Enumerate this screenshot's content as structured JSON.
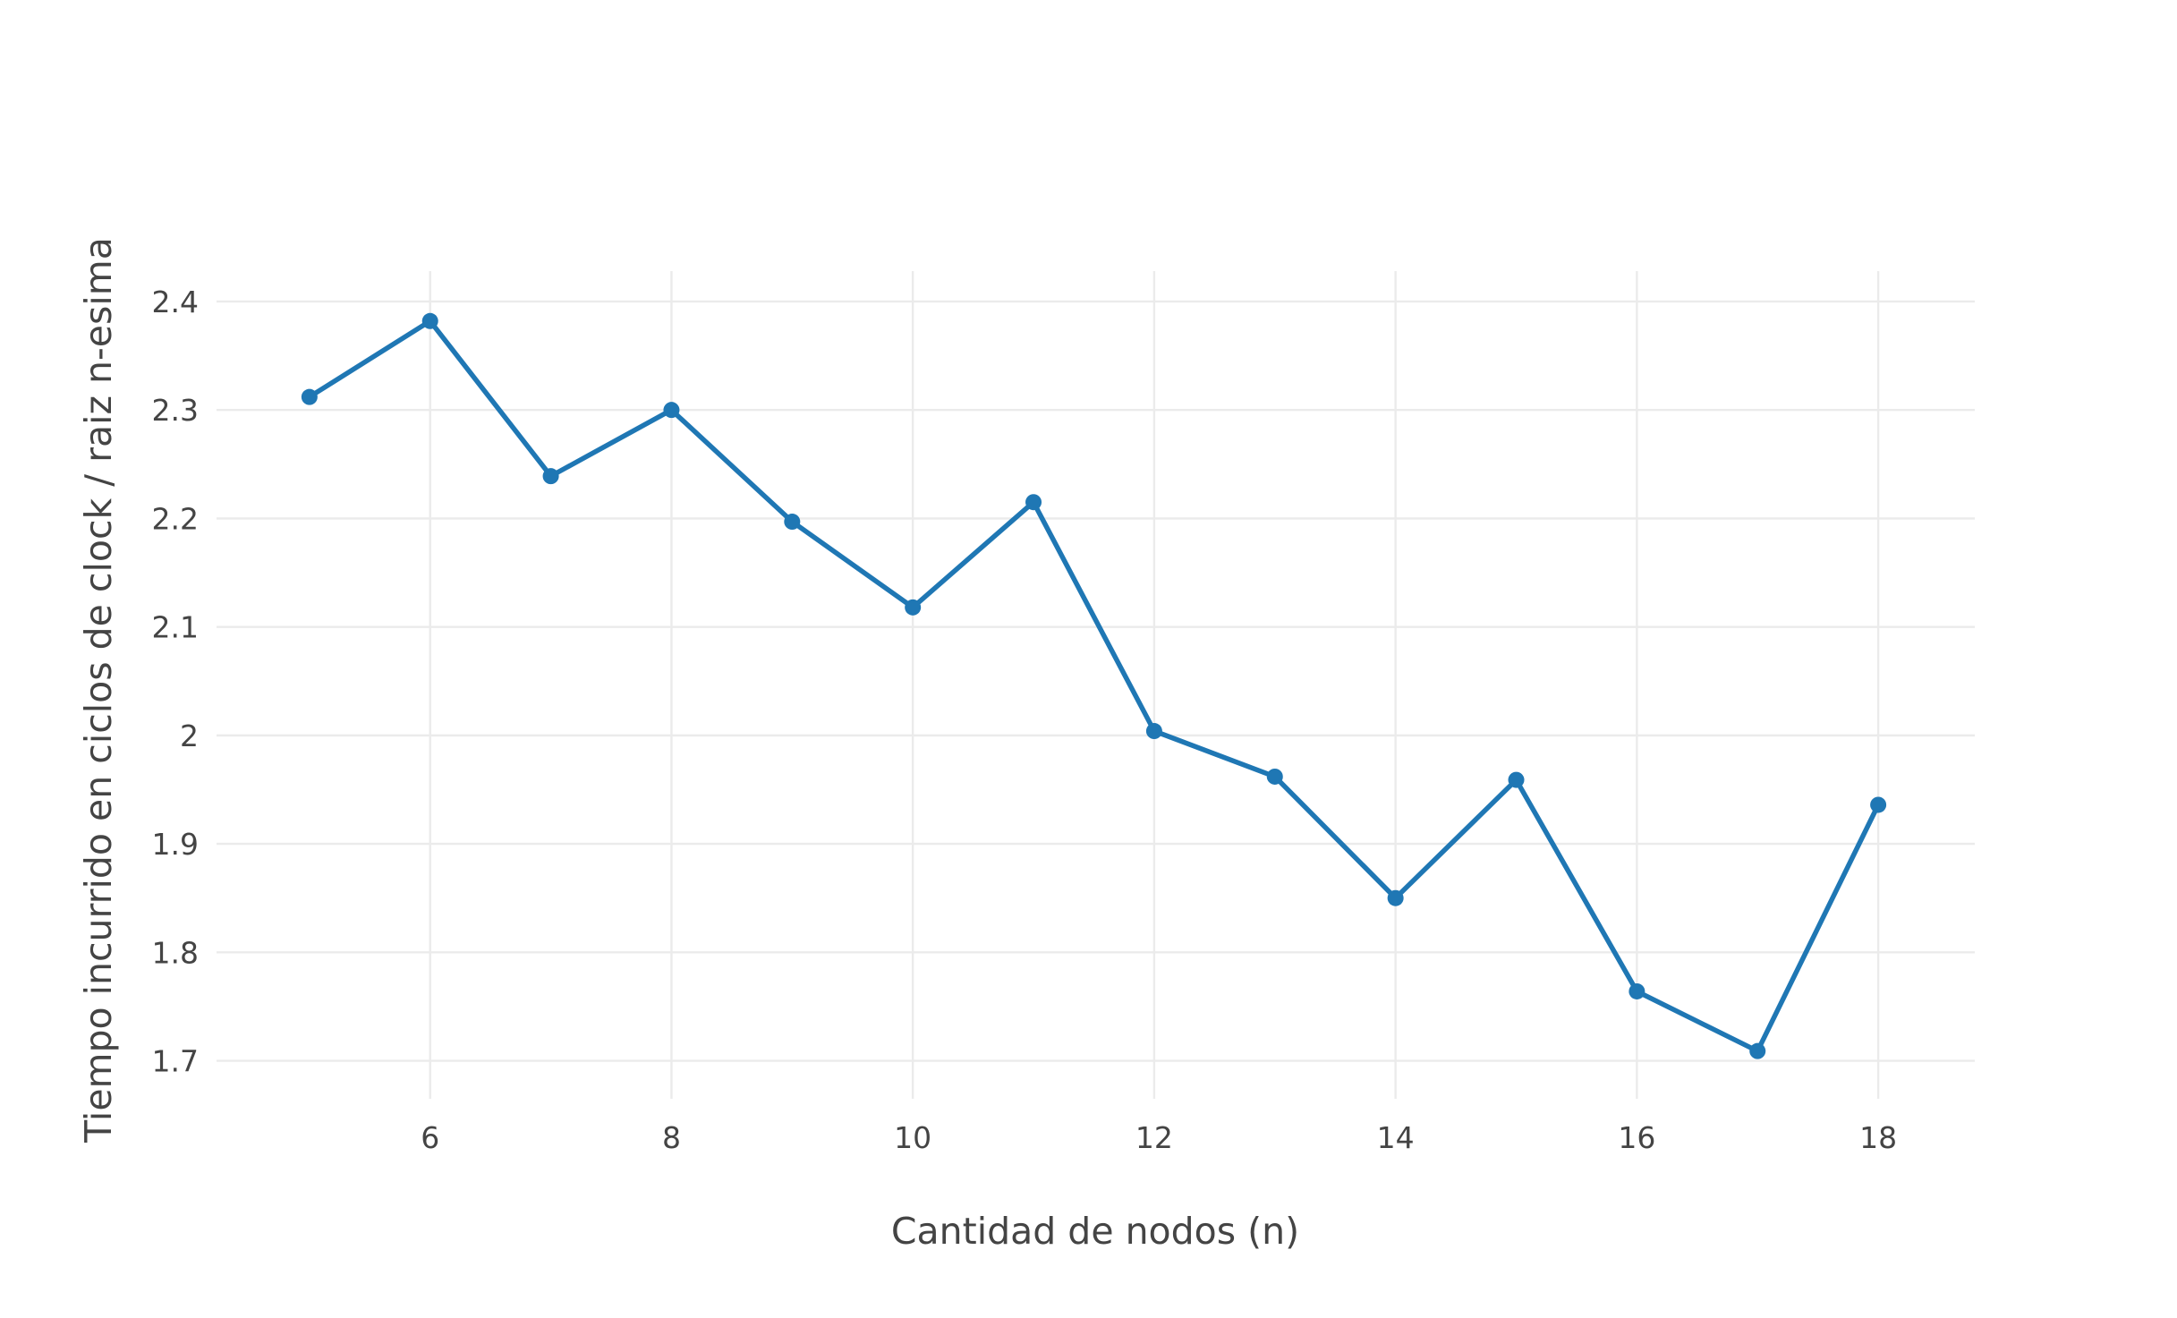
{
  "chart_data": {
    "type": "line",
    "title": "",
    "xlabel": "Cantidad de nodos (n)",
    "ylabel": "Tiempo incurrido en ciclos de clock / raiz n-esima",
    "xlim": [
      4.23,
      18.8
    ],
    "ylim": [
      1.665,
      2.428
    ],
    "x_ticks": [
      6,
      8,
      10,
      12,
      14,
      16,
      18
    ],
    "y_ticks": [
      1.7,
      1.8,
      1.9,
      2,
      2.1,
      2.2,
      2.3,
      2.4
    ],
    "x_tick_labels": [
      "6",
      "8",
      "10",
      "12",
      "14",
      "16",
      "18"
    ],
    "y_tick_labels": [
      "1.7",
      "1.8",
      "1.9",
      "2",
      "2.1",
      "2.2",
      "2.3",
      "2.4"
    ],
    "grid": true,
    "legend": "none",
    "series": [
      {
        "color": "#1f77b4",
        "mode": "lines+markers",
        "x": [
          5,
          6,
          7,
          8,
          9,
          10,
          11,
          12,
          13,
          14,
          15,
          16,
          17,
          18
        ],
        "y": [
          2.312,
          2.382,
          2.239,
          2.3,
          2.197,
          2.118,
          2.215,
          2.004,
          1.962,
          1.85,
          1.959,
          1.764,
          1.709,
          1.936
        ]
      }
    ]
  }
}
